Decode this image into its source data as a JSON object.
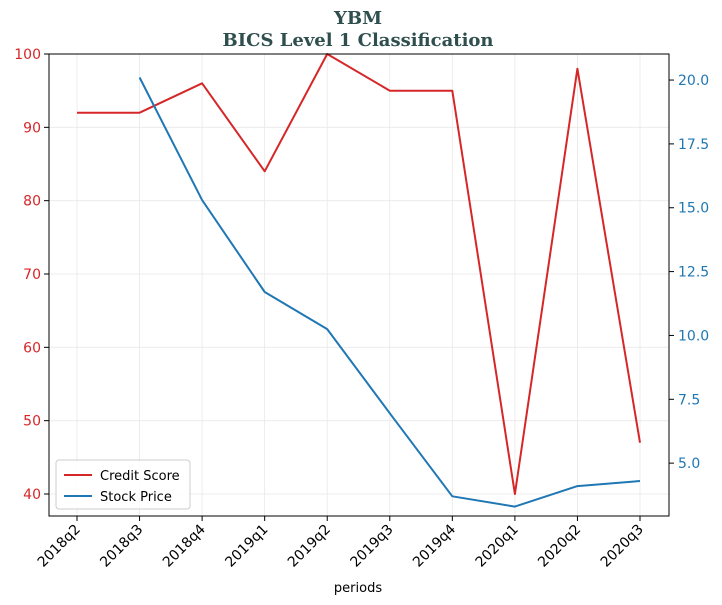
{
  "chart_data": {
    "type": "line",
    "title": "YBM",
    "subtitle": "BICS Level 1 Classification",
    "xlabel": "periods",
    "categories": [
      "2018q2",
      "2018q3",
      "2018q4",
      "2019q1",
      "2019q2",
      "2019q3",
      "2019q4",
      "2020q1",
      "2020q2",
      "2020q3"
    ],
    "left_axis": {
      "ylim": [
        37,
        100
      ],
      "ticks": [
        40,
        50,
        60,
        70,
        80,
        90,
        100
      ],
      "color": "#d62728"
    },
    "right_axis": {
      "ylim": [
        2.93,
        21.02
      ],
      "ticks": [
        "5.0",
        "7.5",
        "10.0",
        "12.5",
        "15.0",
        "17.5",
        "20.0"
      ],
      "tick_values": [
        5.0,
        7.5,
        10.0,
        12.5,
        15.0,
        17.5,
        20.0
      ],
      "color": "#1f77b4"
    },
    "series": [
      {
        "name": "Credit Score",
        "axis": "left",
        "color": "#d62728",
        "values": [
          92,
          92,
          96,
          84,
          100,
          95,
          95,
          40,
          98,
          47
        ]
      },
      {
        "name": "Stock Price",
        "axis": "right",
        "color": "#1f77b4",
        "values": [
          null,
          20.1,
          15.3,
          11.7,
          10.25,
          6.95,
          3.7,
          3.3,
          4.1,
          4.3
        ]
      }
    ],
    "grid": true,
    "legend": "lower-left"
  }
}
